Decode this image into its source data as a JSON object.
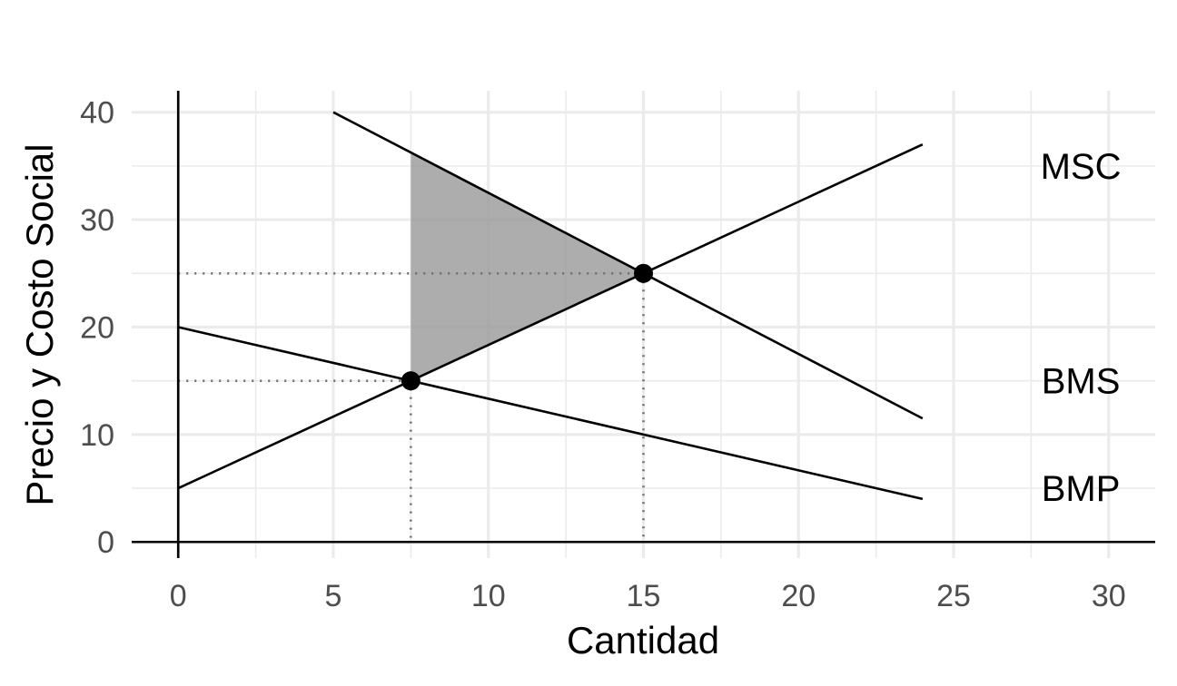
{
  "chart_data": {
    "type": "line",
    "xlabel": "Cantidad",
    "ylabel": "Precio y Costo Social",
    "xlim": [
      -1.5,
      31.5
    ],
    "ylim": [
      -1.5,
      42
    ],
    "x_ticks": [
      "0",
      "5",
      "10",
      "15",
      "20",
      "25",
      "30"
    ],
    "y_ticks": [
      "0",
      "10",
      "20",
      "30",
      "40"
    ],
    "series": [
      {
        "name": "MSC",
        "x": [
          0,
          24
        ],
        "y": [
          5,
          37
        ]
      },
      {
        "name": "BMS",
        "x": [
          5,
          24
        ],
        "y": [
          40,
          11.5
        ]
      },
      {
        "name": "BMP",
        "x": [
          0,
          24
        ],
        "y": [
          20,
          4
        ]
      }
    ],
    "points": [
      {
        "x": 7.5,
        "y": 15
      },
      {
        "x": 15,
        "y": 25
      }
    ],
    "shaded_region": [
      [
        7.5,
        15
      ],
      [
        7.5,
        36.25
      ],
      [
        15,
        25
      ]
    ],
    "guides": [
      {
        "x": 7.5,
        "y": 15
      },
      {
        "x": 15,
        "y": 25
      }
    ],
    "grid": true
  }
}
